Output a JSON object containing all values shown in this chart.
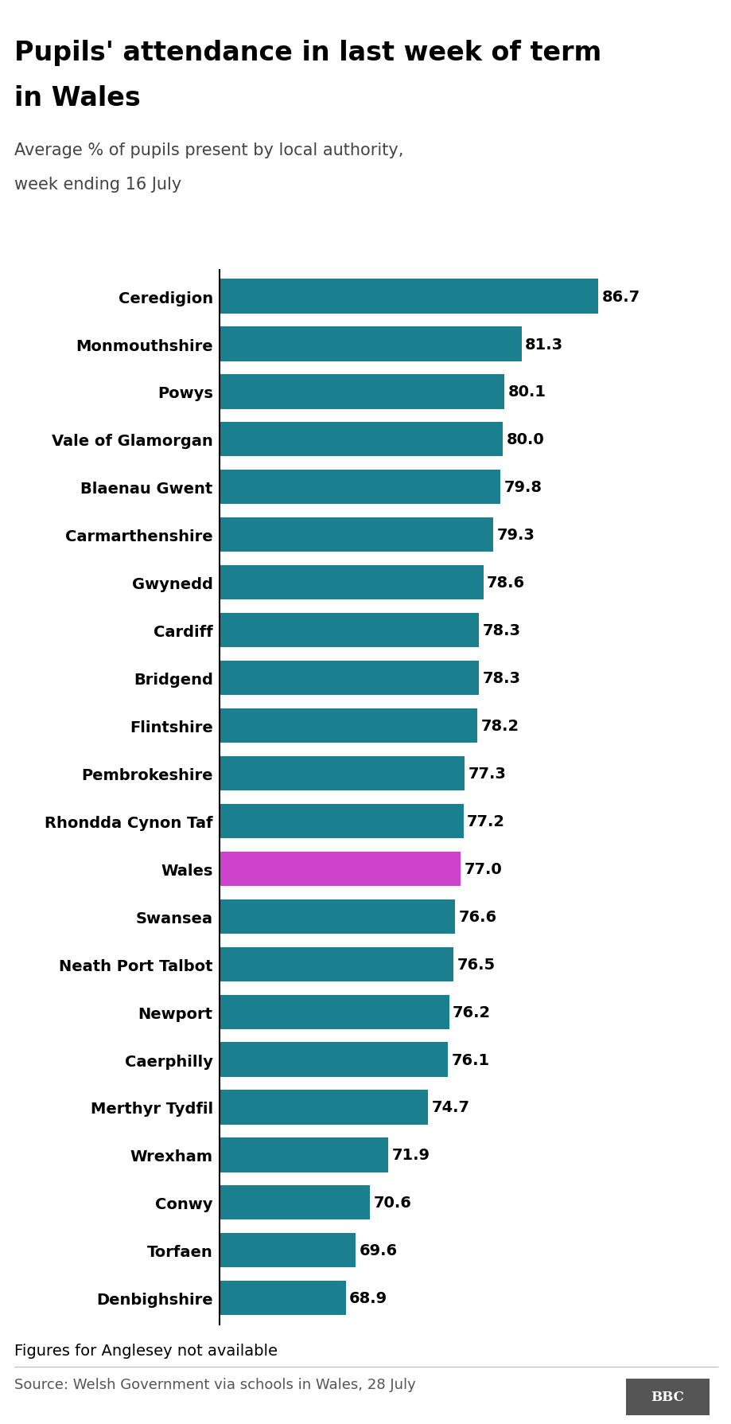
{
  "title_line1": "Pupils' attendance in last week of term",
  "title_line2": "in Wales",
  "subtitle_line1": "Average % of pupils present by local authority,",
  "subtitle_line2": "week ending 16 July",
  "categories": [
    "Ceredigion",
    "Monmouthshire",
    "Powys",
    "Vale of Glamorgan",
    "Blaenau Gwent",
    "Carmarthenshire",
    "Gwynedd",
    "Cardiff",
    "Bridgend",
    "Flintshire",
    "Pembrokeshire",
    "Rhondda Cynon Taf",
    "Wales",
    "Swansea",
    "Neath Port Talbot",
    "Newport",
    "Caerphilly",
    "Merthyr Tydfil",
    "Wrexham",
    "Conwy",
    "Torfaen",
    "Denbighshire"
  ],
  "values": [
    86.7,
    81.3,
    80.1,
    80.0,
    79.8,
    79.3,
    78.6,
    78.3,
    78.3,
    78.2,
    77.3,
    77.2,
    77.0,
    76.6,
    76.5,
    76.2,
    76.1,
    74.7,
    71.9,
    70.6,
    69.6,
    68.9
  ],
  "bar_color_default": "#1a7f8e",
  "bar_color_highlight": "#cc44cc",
  "highlight_index": 12,
  "footnote": "Figures for Anglesey not available",
  "source": "Source: Welsh Government via schools in Wales, 28 July",
  "xlim_min": 60,
  "xlim_max": 92,
  "title_fontsize": 24,
  "subtitle_fontsize": 15,
  "label_fontsize": 14,
  "value_fontsize": 14,
  "footnote_fontsize": 14,
  "source_fontsize": 13,
  "background_color": "#ffffff",
  "text_color": "#000000",
  "gray_color": "#555555"
}
